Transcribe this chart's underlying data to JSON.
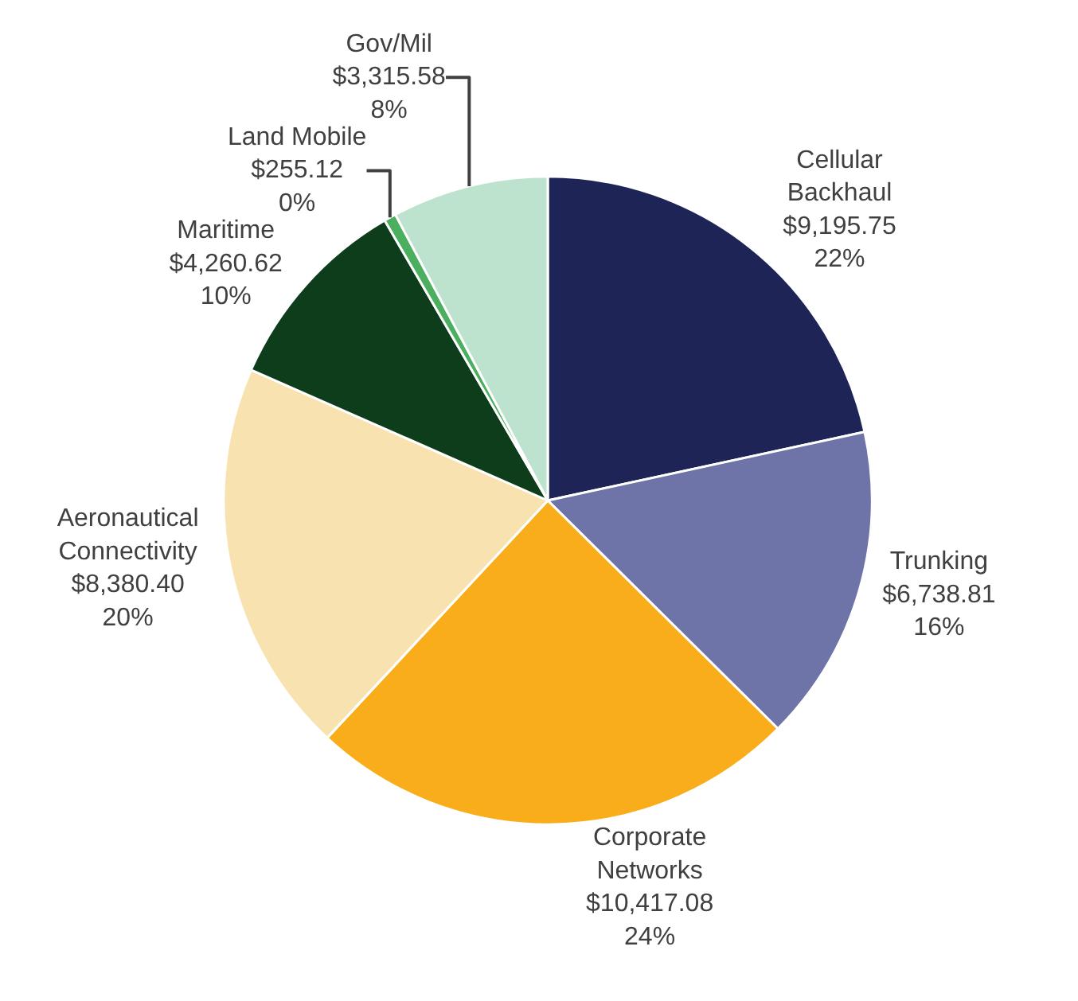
{
  "chart_data": {
    "type": "pie",
    "categories": [
      "Cellular\nBackhaul",
      "Trunking",
      "Corporate\nNetworks",
      "Aeronautical\nConnectivity",
      "Maritime",
      "Land Mobile",
      "Gov/Mil"
    ],
    "values": [
      9195.75,
      6738.81,
      10417.08,
      8380.4,
      4260.62,
      255.12,
      3315.58
    ],
    "value_labels": [
      "$9,195.75\n22%",
      "$6,738.81\n16%",
      "$10,417.08\n24%",
      "$8,380.40\n20%",
      "$4,260.62\n10%",
      "$255.12\n0%",
      "$3,315.58\n8%"
    ],
    "colors": [
      "#1f2456",
      "#6e74a8",
      "#f9ad1a",
      "#f8e3b0",
      "#0e3d1c",
      "#4caf60",
      "#bde3cf"
    ],
    "legend": false
  }
}
